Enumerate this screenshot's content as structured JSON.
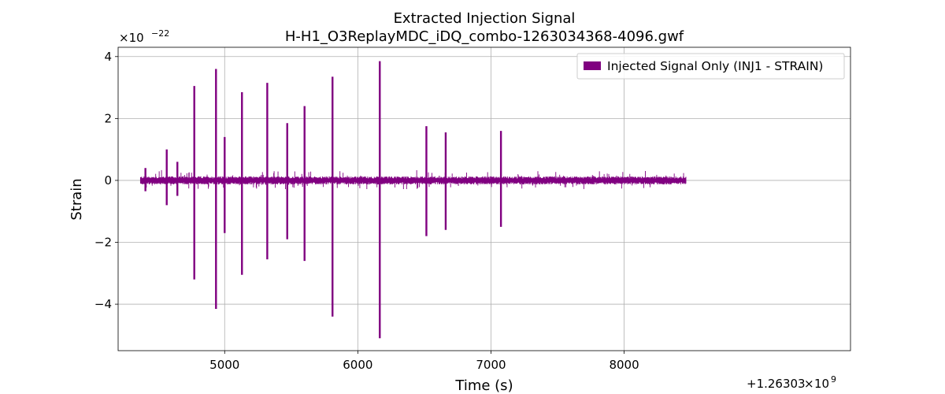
{
  "chart_data": {
    "type": "line",
    "title": [
      "Extracted Injection Signal",
      "H-H1_O3ReplayMDC_iDQ_combo-1263034368-4096.gwf"
    ],
    "xlabel": "Time (s)",
    "ylabel": "Strain",
    "x_offset_text": "+1.26303",
    "x_offset_exponent": "9",
    "y_scale_text": "×10",
    "y_scale_exponent": "−22",
    "xlim": [
      4200,
      9700
    ],
    "ylim": [
      -5.5,
      4.3
    ],
    "xticks": [
      5000,
      6000,
      7000,
      8000
    ],
    "xtick_labels": [
      "5000",
      "6000",
      "7000",
      "8000"
    ],
    "yticks": [
      -4,
      -2,
      0,
      2,
      4
    ],
    "ytick_labels": [
      "−4",
      "−2",
      "0",
      "2",
      "4"
    ],
    "grid": true,
    "legend_position": "top-right",
    "series": [
      {
        "name": "Injected Signal Only (INJ1 - STRAIN)",
        "color": "#800080",
        "x_range": [
          4368,
          8464
        ],
        "baseline_amplitude": 0.1,
        "spikes": [
          {
            "x": 4405,
            "top": 0.4,
            "bottom": -0.35
          },
          {
            "x": 4565,
            "top": 1.0,
            "bottom": -0.8
          },
          {
            "x": 4645,
            "top": 0.6,
            "bottom": -0.5
          },
          {
            "x": 4772,
            "top": 3.05,
            "bottom": -3.2
          },
          {
            "x": 4935,
            "top": 3.6,
            "bottom": -4.15
          },
          {
            "x": 5000,
            "top": 1.4,
            "bottom": -1.7
          },
          {
            "x": 5130,
            "top": 2.85,
            "bottom": -3.05
          },
          {
            "x": 5320,
            "top": 3.15,
            "bottom": -2.55
          },
          {
            "x": 5470,
            "top": 1.85,
            "bottom": -1.9
          },
          {
            "x": 5600,
            "top": 2.4,
            "bottom": -2.6
          },
          {
            "x": 5810,
            "top": 3.35,
            "bottom": -4.4
          },
          {
            "x": 6165,
            "top": 3.85,
            "bottom": -5.1
          },
          {
            "x": 6515,
            "top": 1.75,
            "bottom": -1.8
          },
          {
            "x": 6660,
            "top": 1.55,
            "bottom": -1.6
          },
          {
            "x": 7075,
            "top": 1.6,
            "bottom": -1.5
          }
        ]
      }
    ]
  }
}
